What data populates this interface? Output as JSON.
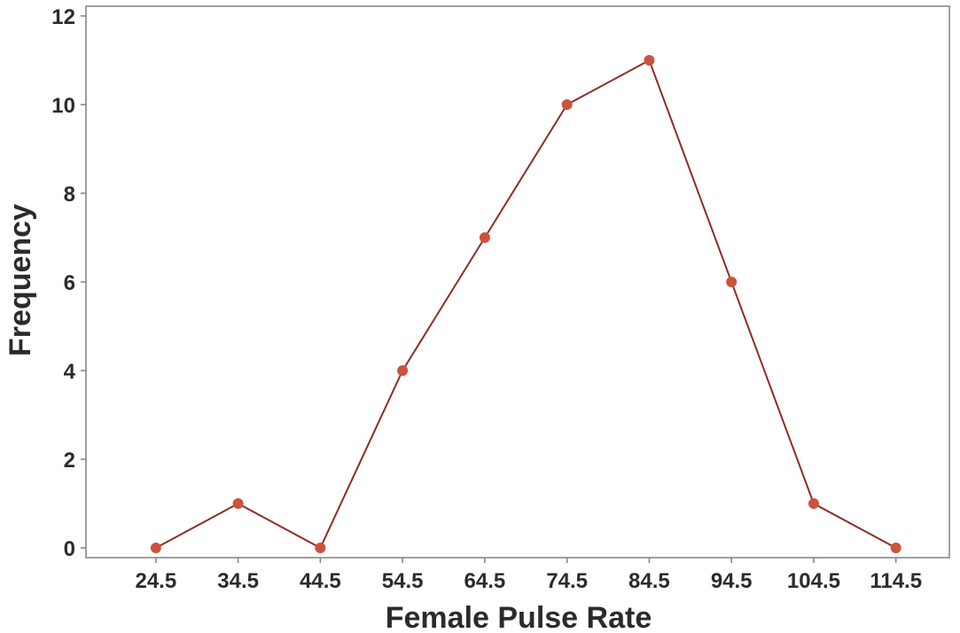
{
  "chart_data": {
    "type": "line",
    "title": "",
    "xlabel": "Female Pulse Rate",
    "ylabel": "Frequency",
    "x": [
      24.5,
      34.5,
      44.5,
      54.5,
      64.5,
      74.5,
      84.5,
      94.5,
      104.5,
      114.5
    ],
    "x_tick_labels": [
      "24.5",
      "34.5",
      "44.5",
      "54.5",
      "64.5",
      "74.5",
      "84.5",
      "94.5",
      "104.5",
      "114.5"
    ],
    "series": [
      {
        "values": [
          0,
          1,
          0,
          4,
          7,
          10,
          11,
          6,
          1,
          0
        ]
      }
    ],
    "y_ticks": [
      0,
      2,
      4,
      6,
      8,
      10,
      12
    ],
    "xlim": [
      16.0,
      121.0
    ],
    "ylim": [
      -0.22,
      12.22
    ],
    "grid": false,
    "line_color": "#8b2e24",
    "marker_color": "#cc533e",
    "axis_color": "#808080"
  }
}
